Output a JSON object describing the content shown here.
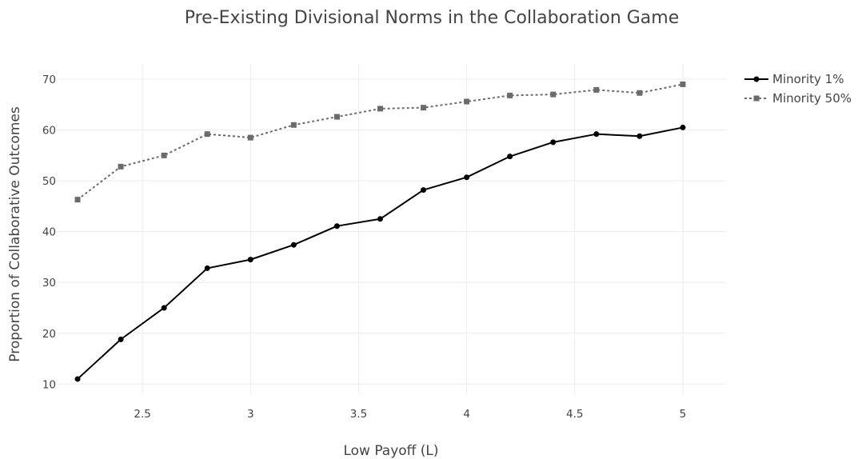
{
  "chart_data": {
    "type": "line",
    "title": "Pre-Existing Divisional Norms in the Collaboration Game",
    "xlabel": "Low Payoff (L)",
    "ylabel": "Proportion of Collaborative Outcomes",
    "xlim": [
      2.1,
      5.2
    ],
    "ylim": [
      8,
      73
    ],
    "xticks": [
      2.5,
      3,
      3.5,
      4,
      4.5,
      5
    ],
    "xtick_labels": [
      "2.5",
      "3",
      "3.5",
      "4",
      "4.5",
      "5"
    ],
    "yticks": [
      10,
      20,
      30,
      40,
      50,
      60,
      70
    ],
    "ytick_labels": [
      "10",
      "20",
      "30",
      "40",
      "50",
      "60",
      "70"
    ],
    "grid": true,
    "legend_position": "top-right",
    "x": [
      2.2,
      2.4,
      2.6,
      2.8,
      3.0,
      3.2,
      3.4,
      3.6,
      3.8,
      4.0,
      4.2,
      4.4,
      4.6,
      4.8,
      5.0
    ],
    "series": [
      {
        "name": "Minority 1%",
        "color": "#000000",
        "line_style": "solid",
        "marker": "circle",
        "values": [
          11.0,
          18.8,
          25.0,
          32.8,
          34.5,
          37.4,
          41.1,
          42.5,
          48.2,
          50.7,
          54.8,
          57.6,
          59.2,
          58.8,
          60.5
        ]
      },
      {
        "name": "Minority 50%",
        "color": "#6b6b6b",
        "line_style": "dotted",
        "marker": "square",
        "values": [
          46.3,
          52.8,
          55.0,
          59.2,
          58.5,
          61.0,
          62.6,
          64.2,
          64.4,
          65.6,
          66.8,
          67.0,
          67.9,
          67.3,
          69.0
        ]
      }
    ]
  }
}
